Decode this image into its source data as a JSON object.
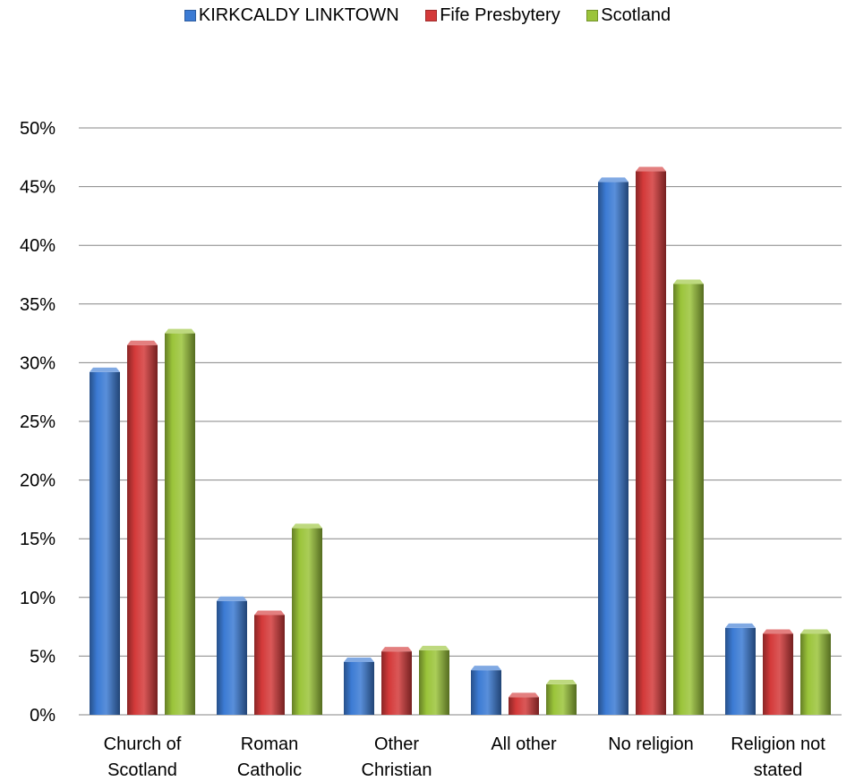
{
  "chart_data": {
    "type": "bar",
    "categories": [
      [
        "Church of",
        "Scotland"
      ],
      [
        "Roman",
        "Catholic"
      ],
      [
        "Other",
        "Christian"
      ],
      [
        "All other"
      ],
      [
        "No religion"
      ],
      [
        "Religion not",
        "stated"
      ]
    ],
    "series": [
      {
        "name": "KIRKCALDY LINKTOWN",
        "color": "#3c7bd4",
        "values": [
          29.2,
          9.7,
          4.5,
          3.8,
          45.4,
          7.4
        ]
      },
      {
        "name": "Fife Presbytery",
        "color": "#d43a3a",
        "values": [
          31.5,
          8.5,
          5.4,
          1.5,
          46.3,
          6.9
        ]
      },
      {
        "name": "Scotland",
        "color": "#9bc43a",
        "values": [
          32.5,
          15.9,
          5.5,
          2.6,
          36.7,
          6.9
        ]
      }
    ],
    "yticks": [
      "0%",
      "5%",
      "10%",
      "15%",
      "20%",
      "25%",
      "30%",
      "35%",
      "40%",
      "45%",
      "50%"
    ],
    "ylim": [
      0,
      50
    ],
    "grid": true,
    "legend_position": "top"
  }
}
